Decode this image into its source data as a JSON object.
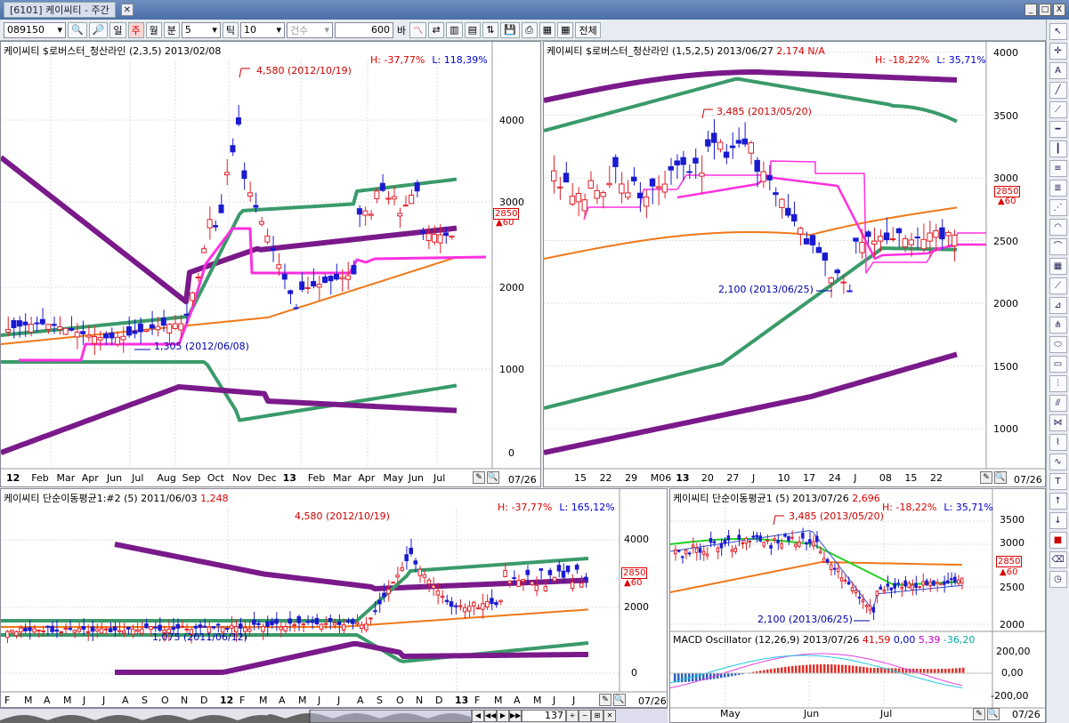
{
  "window": {
    "title": "[6101] 케이씨티 - 주간",
    "win_buttons": [
      "_",
      "□",
      "X"
    ]
  },
  "toolbar": {
    "code": "089150",
    "period_buttons": [
      "일",
      "주",
      "월",
      "분"
    ],
    "active_period": "주",
    "minute_value": "5",
    "tick_label": "틱",
    "tick_value": "10",
    "count_label": "건수",
    "count_value": "600",
    "bar_label": "바",
    "all_label": "전체"
  },
  "panels": {
    "top_left": {
      "title": "케이씨티 $로버스터_청산라인",
      "params": "(2,3,5)",
      "date": "2013/02/08",
      "high_label": "H: -37,77%",
      "low_label": "L: 118,39%",
      "y_ticks": [
        "4000",
        "3000",
        "2000",
        "1000",
        "0"
      ],
      "x_ticks": [
        "12",
        "Feb",
        "Mar",
        "Apr",
        "Jun",
        "Jul",
        "Aug",
        "Sep",
        "Oct",
        "Nov",
        "Dec",
        "13",
        "Feb",
        "Mar",
        "Apr",
        "May",
        "Jun",
        "Jul"
      ],
      "high_annot": "4,580 (2012/10/19)",
      "low_annot": "1,305 (2012/06/08)",
      "price": "2850",
      "price_sub": "60",
      "end_date": "07/26"
    },
    "top_right": {
      "title": "케이씨티 $로버스터_청산라인",
      "params": "(1,5,2,5)",
      "date": "2013/06/27",
      "value": "2,174 N/A",
      "high_label": "H: -18,22%",
      "low_label": "L: 35,71%",
      "y_ticks": [
        "4000",
        "3500",
        "3000",
        "2500",
        "2000",
        "1500",
        "1000"
      ],
      "x_ticks": [
        "15",
        "22",
        "29",
        "M06",
        "13",
        "20",
        "27",
        "J",
        "10",
        "17",
        "24",
        "J",
        "08",
        "15",
        "22"
      ],
      "high_annot": "3,485 (2013/05/20)",
      "low_annot": "2,100 (2013/06/25)",
      "price": "2850",
      "price_sub": "60",
      "end_date": "07/26"
    },
    "bottom_left": {
      "title": "케이씨티 단순이동평균1:#2",
      "params": "(5)",
      "date": "2011/06/03",
      "value": "1,248",
      "high_label": "H: -37,77%",
      "low_label": "L: 165,12%",
      "y_ticks": [
        "4000",
        "2000",
        "0"
      ],
      "x_ticks": [
        "F",
        "M",
        "A",
        "M",
        "J",
        "J",
        "A",
        "S",
        "O",
        "N",
        "D",
        "12",
        "F",
        "M",
        "A",
        "M",
        "J",
        "J",
        "A",
        "S",
        "O",
        "N",
        "D",
        "13",
        "F",
        "M",
        "A",
        "M",
        "J",
        "J"
      ],
      "high_annot": "4,580 (2012/10/19)",
      "low_annot": "1,075 (2011/06/12)",
      "price": "2850",
      "price_sub": "60",
      "end_date": "07/26"
    },
    "bottom_right": {
      "title": "케이씨티 단순이동평균1",
      "params": "(5)",
      "date": "2013/07/26",
      "value": "2,696",
      "high_label": "H: -18,22%",
      "low_label": "L: 35,71%",
      "y_ticks": [
        "3500",
        "3000",
        "2500",
        "2000"
      ],
      "high_annot": "3,485 (2013/05/20)",
      "low_annot": "2,100 (2013/06/25)",
      "price": "2850",
      "price_sub": "60",
      "macd_title": "MACD Oscillator",
      "macd_params": "(12,26,9)",
      "macd_date": "2013/07/26",
      "macd_v1": "41,59",
      "macd_v2": "0,00",
      "macd_v3": "5,39",
      "macd_v4": "-36,20",
      "macd_ticks": [
        "200,00",
        "0,00",
        "-200,00"
      ],
      "x_ticks": [
        "May",
        "Jun",
        "Jul"
      ],
      "end_date": "07/26"
    }
  },
  "scroll": {
    "count": "137"
  },
  "colors": {
    "up": "#e0202a",
    "down": "#1a1ad0",
    "purple": "#7a1a8a",
    "green": "#3a9a6a",
    "orange": "#f07818",
    "magenta": "#ff30e0",
    "lightgreen": "#20d020"
  }
}
